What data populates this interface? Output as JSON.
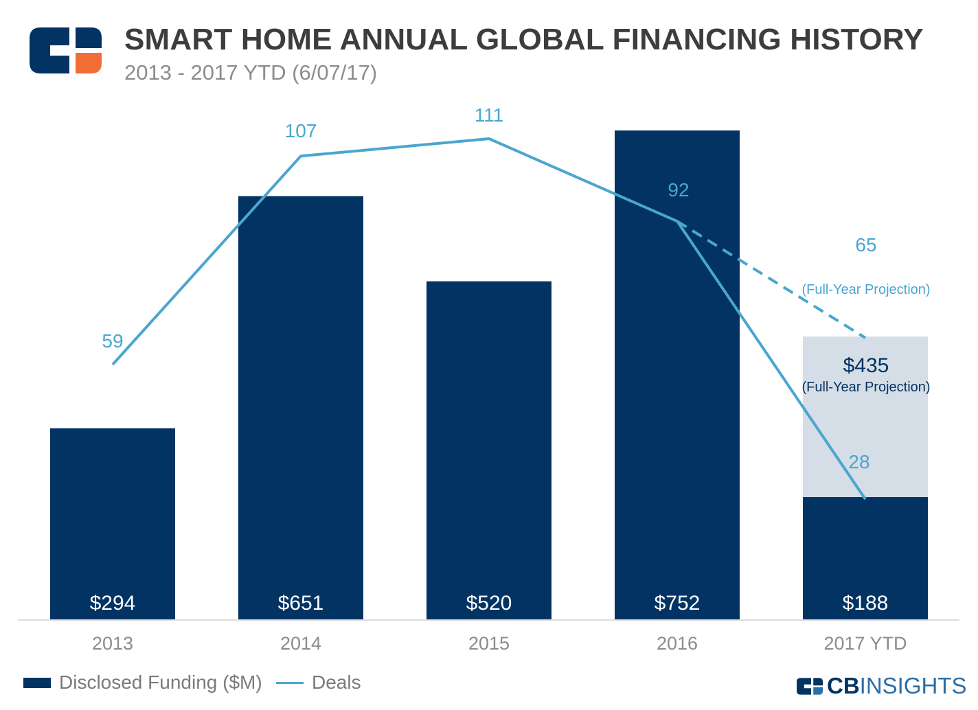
{
  "header": {
    "title": "SMART HOME ANNUAL GLOBAL FINANCING HISTORY",
    "subtitle": "2013 - 2017 YTD (6/07/17)"
  },
  "brand": {
    "prefix": "CB",
    "suffix": "INSIGHTS"
  },
  "colors": {
    "bar": "#023363",
    "projection_bar": "#d5dde6",
    "line": "#4aa6cf",
    "axis_text": "#8c8c8c"
  },
  "chart_data": {
    "type": "bar",
    "categories": [
      "2013",
      "2014",
      "2015",
      "2016",
      "2017 YTD"
    ],
    "series": [
      {
        "name": "Disclosed Funding ($M)",
        "type": "bar",
        "values": [
          294,
          651,
          520,
          752,
          188
        ],
        "labels": [
          "$294",
          "$651",
          "$520",
          "$752",
          "$188"
        ]
      },
      {
        "name": "Deals",
        "type": "line",
        "values": [
          59,
          107,
          111,
          92,
          28
        ],
        "labels": [
          "59",
          "107",
          "111",
          "92",
          "28"
        ]
      }
    ],
    "projections": {
      "funding": {
        "category": "2017 YTD",
        "value": 435,
        "label": "$435",
        "note": "(Full-Year Projection)"
      },
      "deals": {
        "category": "2017 YTD",
        "value": 65,
        "label": "65",
        "note": "(Full-Year Projection)"
      }
    },
    "grid": false,
    "legend_position": "bottom-left"
  }
}
